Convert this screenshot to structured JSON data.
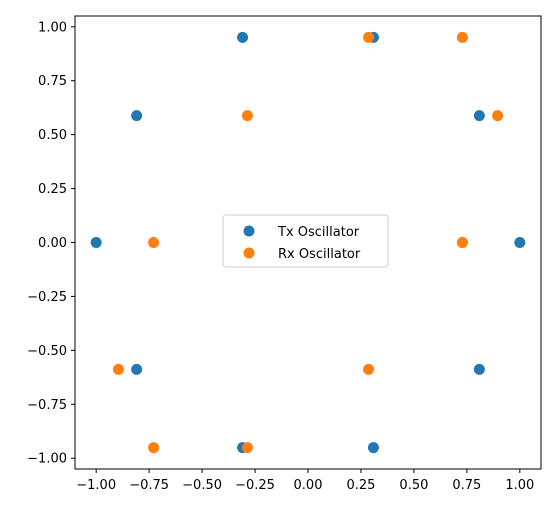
{
  "chart_data": {
    "type": "scatter",
    "title": "",
    "xlabel": "",
    "ylabel": "",
    "xlim": [
      -1.1,
      1.1
    ],
    "ylim": [
      -1.05,
      1.05
    ],
    "grid": false,
    "legend_position": "center",
    "xticks": [
      "−1.00",
      "−0.75",
      "−0.50",
      "−0.25",
      "0.00",
      "0.25",
      "0.50",
      "0.75",
      "1.00"
    ],
    "xtick_values": [
      -1.0,
      -0.75,
      -0.5,
      -0.25,
      0.0,
      0.25,
      0.5,
      0.75,
      1.0
    ],
    "yticks": [
      "1.00",
      "0.75",
      "0.50",
      "0.25",
      "0.00",
      "−0.25",
      "−0.50",
      "−0.75",
      "−1.00"
    ],
    "ytick_values": [
      1.0,
      0.75,
      0.5,
      0.25,
      0.0,
      -0.25,
      -0.5,
      -0.75,
      -1.0
    ],
    "series": [
      {
        "name": "Tx Oscillator",
        "color": "#1f77b4",
        "points": [
          [
            1.0,
            0.0
          ],
          [
            0.809,
            0.588
          ],
          [
            0.309,
            0.951
          ],
          [
            -0.309,
            0.951
          ],
          [
            -0.809,
            0.588
          ],
          [
            -1.0,
            0.0
          ],
          [
            -0.809,
            -0.588
          ],
          [
            -0.309,
            -0.951
          ],
          [
            0.309,
            -0.951
          ],
          [
            0.809,
            -0.588
          ]
        ]
      },
      {
        "name": "Rx Oscillator",
        "color": "#ff7f0e",
        "points": [
          [
            0.729,
            0.0
          ],
          [
            0.895,
            0.588
          ],
          [
            0.729,
            0.951
          ],
          [
            0.286,
            0.951
          ],
          [
            -0.286,
            0.588
          ],
          [
            -0.729,
            0.0
          ],
          [
            -0.895,
            -0.588
          ],
          [
            -0.729,
            -0.951
          ],
          [
            -0.286,
            -0.951
          ],
          [
            0.286,
            -0.588
          ],
          [
            0.729,
            0.0
          ]
        ]
      }
    ]
  }
}
